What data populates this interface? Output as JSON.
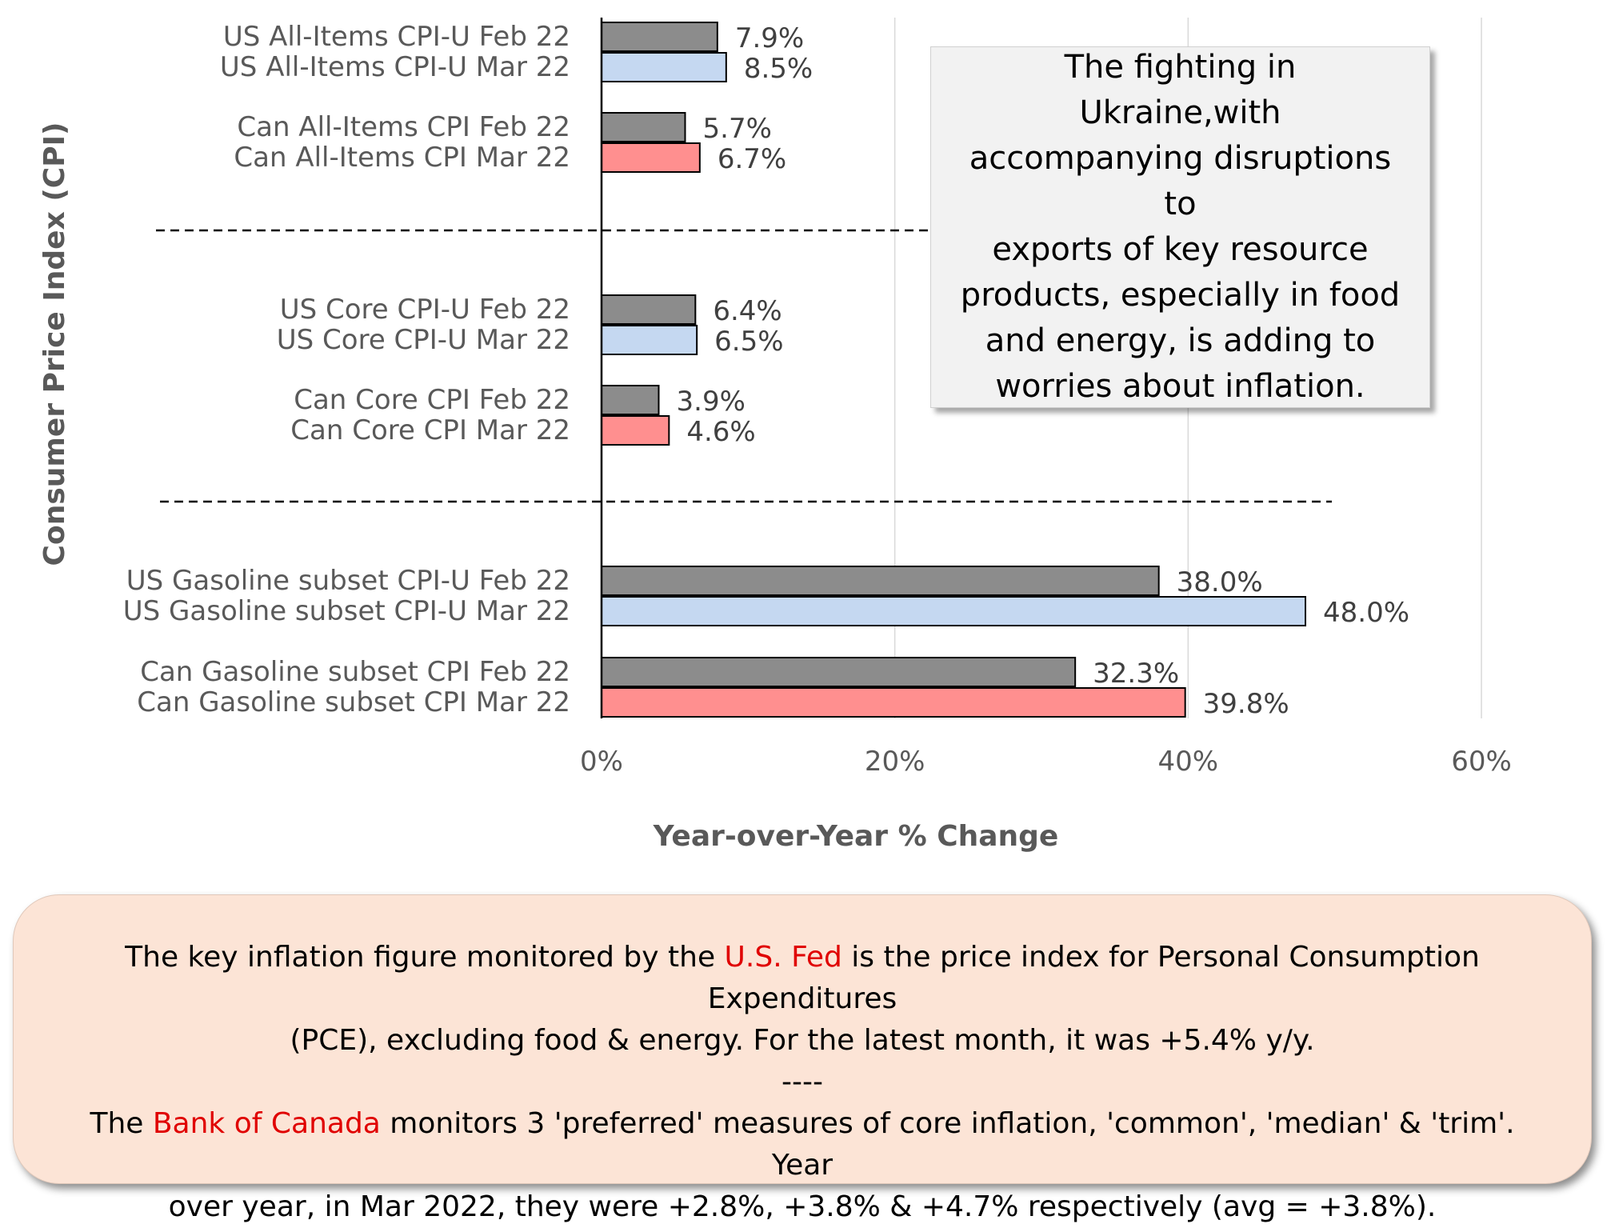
{
  "chart_data": {
    "type": "bar",
    "orientation": "horizontal",
    "categories": [
      "US All-Items CPI-U Feb 22",
      "US All-Items CPI-U Mar 22",
      "Can All-Items CPI Feb 22",
      "Can All-Items CPI Mar 22",
      "US Core CPI-U Feb 22",
      "US Core CPI-U Mar 22",
      "Can Core CPI Feb 22",
      "Can Core CPI Mar 22",
      "US Gasoline subset CPI-U Feb 22",
      "US Gasoline subset CPI-U Mar 22",
      "Can Gasoline subset CPI Feb 22",
      "Can Gasoline subset CPI Mar 22"
    ],
    "values": [
      7.9,
      8.5,
      5.7,
      6.7,
      6.4,
      6.5,
      3.9,
      4.6,
      38.0,
      48.0,
      32.3,
      39.8
    ],
    "data_labels": [
      "7.9%",
      "8.5%",
      "5.7%",
      "6.7%",
      "6.4%",
      "6.5%",
      "3.9%",
      "4.6%",
      "38.0%",
      "48.0%",
      "32.3%",
      "39.8%"
    ],
    "bar_colors": [
      "#8c8c8c",
      "#c5d8f1",
      "#8c8c8c",
      "#ff8f8f",
      "#8c8c8c",
      "#c5d8f1",
      "#8c8c8c",
      "#ff8f8f",
      "#8c8c8c",
      "#c5d8f1",
      "#8c8c8c",
      "#ff8f8f"
    ],
    "xlabel": "Year-over-Year % Change",
    "ylabel": "Consumer Price Index (CPI)",
    "xlim": [
      0,
      60
    ],
    "xticks": [
      0,
      20,
      40,
      60
    ],
    "xtick_labels": [
      "0%",
      "20%",
      "40%",
      "60%"
    ],
    "grid": "vertical",
    "group_separators": "dashed lines between the all-items, core and gasoline groups"
  },
  "callout": {
    "lines": [
      "The fighting in Ukraine,with",
      "accompanying disruptions to",
      "exports of key resource",
      "products, especially in food",
      "and energy, is adding to",
      "worries about inflation."
    ]
  },
  "note": {
    "p1_before": "The key inflation figure monitored by the ",
    "p1_highlight": "U.S. Fed",
    "p1_line1_after": " is the price index for Personal Consumption Expenditures",
    "p1_line2": "(PCE), excluding food & energy. For the latest month, it was +5.4% y/y.",
    "separator": "----",
    "p2_before": "The ",
    "p2_highlight": "Bank of Canada",
    "p2_line1_after": " monitors 3 'preferred' measures of core inflation, 'common', 'median' & 'trim'. Year",
    "p2_line2": "over year, in Mar 2022, they were +2.8%, +3.8% & +4.7% respectively (avg = +3.8%).",
    "highlight_color": "#e00000"
  }
}
